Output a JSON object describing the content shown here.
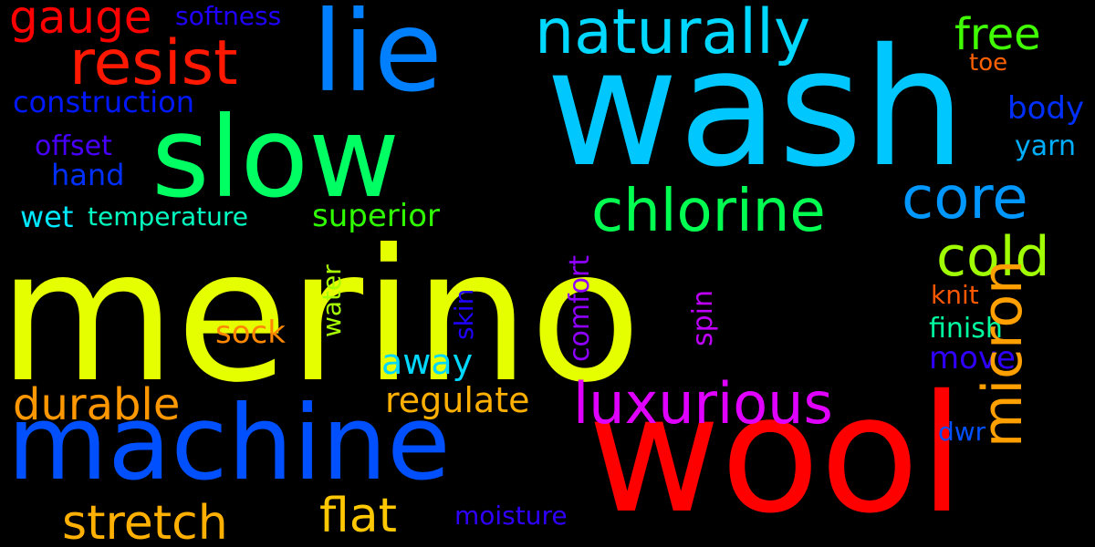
{
  "background": "#000000",
  "words": [
    {
      "text": "merino",
      "color": "#e5ff00"
    },
    {
      "text": "wash",
      "color": "#00c8ff"
    },
    {
      "text": "wool",
      "color": "#ff0000"
    },
    {
      "text": "machine",
      "color": "#0050ff"
    },
    {
      "text": "slow",
      "color": "#00ff63"
    },
    {
      "text": "lie",
      "color": "#0080ff"
    },
    {
      "text": "naturally",
      "color": "#00d8ff"
    },
    {
      "text": "resist",
      "color": "#ff1800"
    },
    {
      "text": "gauge",
      "color": "#ff0000"
    },
    {
      "text": "softness",
      "color": "#2000ff"
    },
    {
      "text": "free",
      "color": "#40ff00"
    },
    {
      "text": "toe",
      "color": "#ff6000"
    },
    {
      "text": "construction",
      "color": "#0018ff"
    },
    {
      "text": "body",
      "color": "#0030ff"
    },
    {
      "text": "offset",
      "color": "#4800ff"
    },
    {
      "text": "hand",
      "color": "#0030ff"
    },
    {
      "text": "yarn",
      "color": "#00b0ff"
    },
    {
      "text": "chlorine",
      "color": "#00ff50"
    },
    {
      "text": "core",
      "color": "#0098ff"
    },
    {
      "text": "wet",
      "color": "#00e8ff"
    },
    {
      "text": "temperature",
      "color": "#00ffc0"
    },
    {
      "text": "superior",
      "color": "#30ff00"
    },
    {
      "text": "cold",
      "color": "#a0ff00"
    },
    {
      "text": "micron",
      "color": "#ffa000"
    },
    {
      "text": "knit",
      "color": "#ff5800"
    },
    {
      "text": "finish",
      "color": "#00ffa0"
    },
    {
      "text": "move",
      "color": "#3000ff"
    },
    {
      "text": "water",
      "color": "#a8ff00"
    },
    {
      "text": "skin",
      "color": "#2000ff"
    },
    {
      "text": "comfort",
      "color": "#9000ff"
    },
    {
      "text": "spin",
      "color": "#c000ff"
    },
    {
      "text": "sock",
      "color": "#ff8800"
    },
    {
      "text": "away",
      "color": "#00d8ff"
    },
    {
      "text": "durable",
      "color": "#ff9800"
    },
    {
      "text": "regulate",
      "color": "#ffb000"
    },
    {
      "text": "luxurious",
      "color": "#e000ff"
    },
    {
      "text": "dwr",
      "color": "#0050ff"
    },
    {
      "text": "stretch",
      "color": "#ffb000"
    },
    {
      "text": "flat",
      "color": "#ffc800"
    },
    {
      "text": "moisture",
      "color": "#3000ff"
    }
  ]
}
